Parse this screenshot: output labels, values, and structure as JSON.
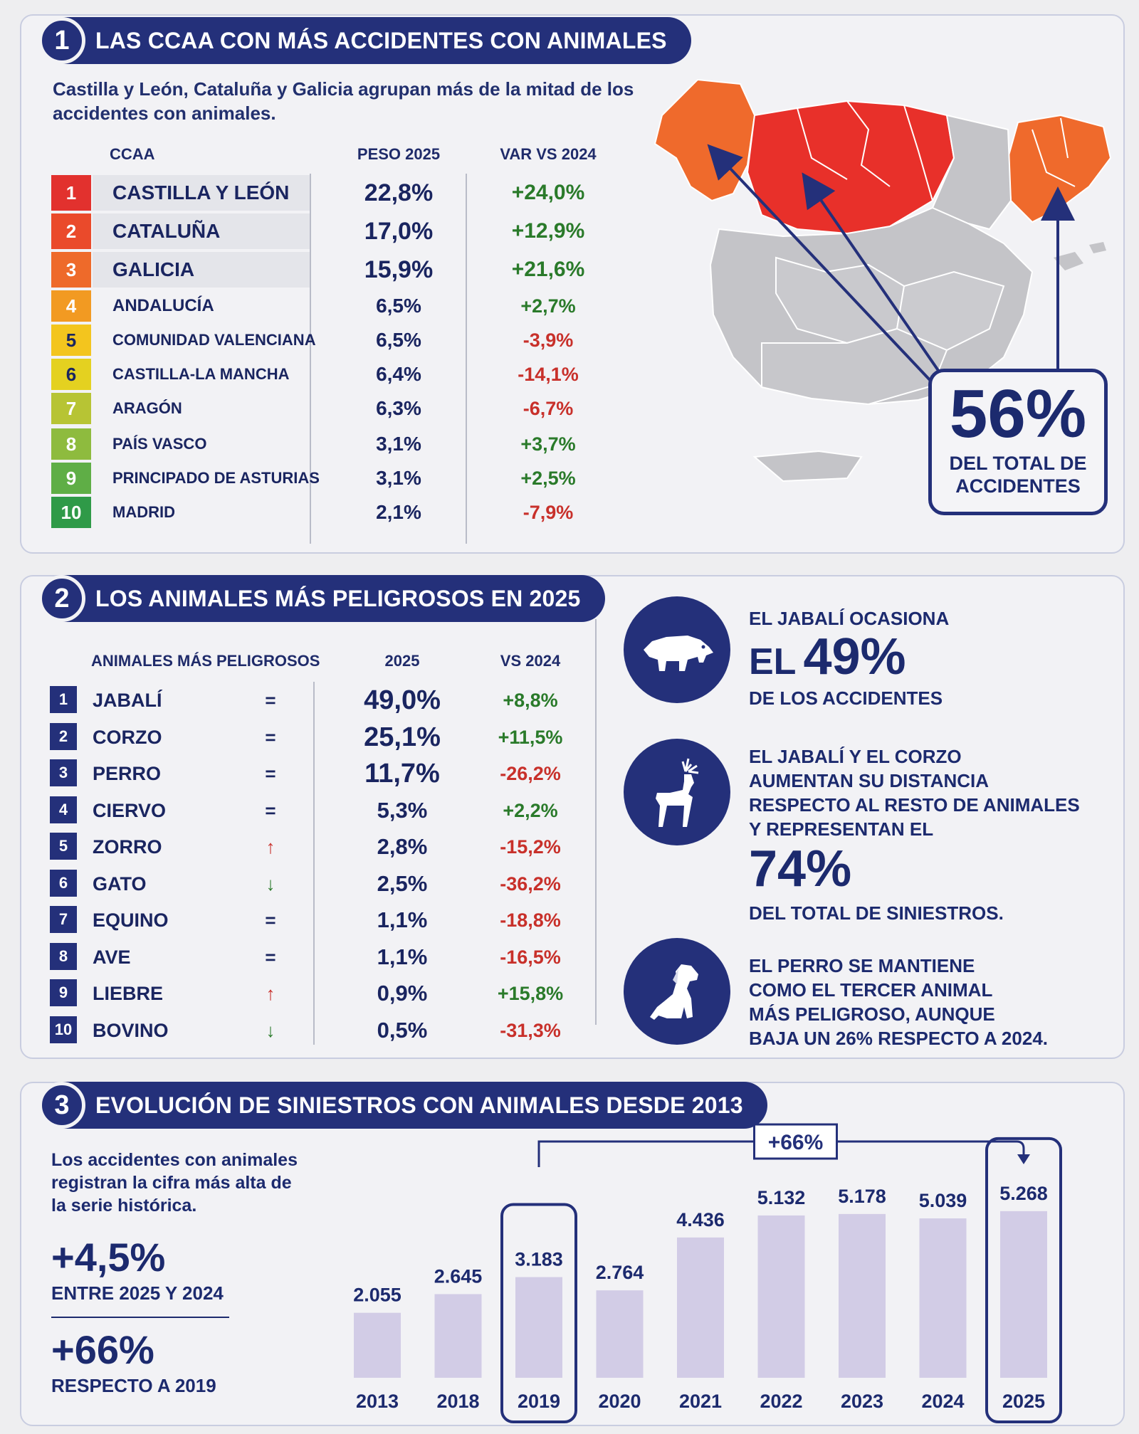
{
  "section1": {
    "number": "1",
    "title": "LAS CCAA CON MÁS ACCIDENTES CON ANIMALES",
    "subtitle": "Castilla y León, Cataluña y Galicia agrupan más de la mitad de los accidentes con animales.",
    "headers": {
      "ccaa": "CCAA",
      "peso": "PESO 2025",
      "var": "VAR VS 2024"
    },
    "rows": [
      {
        "rank": "1",
        "name": "CASTILLA Y LEÓN",
        "peso": "22,8%",
        "var": "+24,0%",
        "color": "#e2312e"
      },
      {
        "rank": "2",
        "name": "CATALUÑA",
        "peso": "17,0%",
        "var": "+12,9%",
        "color": "#ea4a2b"
      },
      {
        "rank": "3",
        "name": "GALICIA",
        "peso": "15,9%",
        "var": "+21,6%",
        "color": "#ee6a2a"
      },
      {
        "rank": "4",
        "name": "ANDALUCÍA",
        "peso": "6,5%",
        "var": "+2,7%",
        "color": "#f29a22"
      },
      {
        "rank": "5",
        "name": "COMUNIDAD VALENCIANA",
        "peso": "6,5%",
        "var": "-3,9%",
        "color": "#f3c51e"
      },
      {
        "rank": "6",
        "name": "CASTILLA-LA MANCHA",
        "peso": "6,4%",
        "var": "-14,1%",
        "color": "#e4d120"
      },
      {
        "rank": "7",
        "name": "ARAGÓN",
        "peso": "6,3%",
        "var": "-6,7%",
        "color": "#b7c434"
      },
      {
        "rank": "8",
        "name": "PAÍS VASCO",
        "peso": "3,1%",
        "var": "+3,7%",
        "color": "#8ebb3e"
      },
      {
        "rank": "9",
        "name": "PRINCIPADO DE ASTURIAS",
        "peso": "3,1%",
        "var": "+2,5%",
        "color": "#5fae46"
      },
      {
        "rank": "10",
        "name": "MADRID",
        "peso": "2,1%",
        "var": "-7,9%",
        "color": "#2f9a48"
      }
    ],
    "map_callout": {
      "pct": "56%",
      "label": "DEL TOTAL DE ACCIDENTES"
    },
    "map_colors": {
      "highlight_cyl": "#e8302a",
      "highlight_gal_cat": "#ef6a2c",
      "other": "#c4c4c8"
    }
  },
  "section2": {
    "number": "2",
    "title": "LOS ANIMALES MÁS PELIGROSOS EN 2025",
    "headers": {
      "animal": "ANIMALES MÁS PELIGROSOS",
      "y2025": "2025",
      "vs": "VS 2024"
    },
    "rows": [
      {
        "rank": "1",
        "name": "JABALÍ",
        "trend": "=",
        "value": "49,0%",
        "var": "+8,8%"
      },
      {
        "rank": "2",
        "name": "CORZO",
        "trend": "=",
        "value": "25,1%",
        "var": "+11,5%"
      },
      {
        "rank": "3",
        "name": "PERRO",
        "trend": "=",
        "value": "11,7%",
        "var": "-26,2%"
      },
      {
        "rank": "4",
        "name": "CIERVO",
        "trend": "=",
        "value": "5,3%",
        "var": "+2,2%"
      },
      {
        "rank": "5",
        "name": "ZORRO",
        "trend": "↑",
        "value": "2,8%",
        "var": "-15,2%"
      },
      {
        "rank": "6",
        "name": "GATO",
        "trend": "↓",
        "value": "2,5%",
        "var": "-36,2%"
      },
      {
        "rank": "7",
        "name": "EQUINO",
        "trend": "=",
        "value": "1,1%",
        "var": "-18,8%"
      },
      {
        "rank": "8",
        "name": "AVE",
        "trend": "=",
        "value": "1,1%",
        "var": "-16,5%"
      },
      {
        "rank": "9",
        "name": "LIEBRE",
        "trend": "↑",
        "value": "0,9%",
        "var": "+15,8%"
      },
      {
        "rank": "10",
        "name": "BOVINO",
        "trend": "↓",
        "value": "0,5%",
        "var": "-31,3%"
      }
    ],
    "info": {
      "boar": {
        "icon": "boar-icon",
        "top": "EL JABALÍ OCASIONA",
        "big_prefix": "EL",
        "big": "49%",
        "bottom": "DE LOS ACCIDENTES"
      },
      "deer": {
        "icon": "deer-icon",
        "lines": [
          "EL JABALÍ Y EL CORZO",
          "AUMENTAN SU DISTANCIA",
          "RESPECTO AL RESTO DE ANIMALES",
          "Y REPRESENTAN EL"
        ],
        "big": "74%",
        "bottom": "DEL TOTAL DE SINIESTROS."
      },
      "dog": {
        "icon": "dog-icon",
        "lines": [
          "EL PERRO SE MANTIENE",
          "COMO EL TERCER ANIMAL",
          "MÁS PELIGROSO, AUNQUE",
          "BAJA UN 26% RESPECTO A 2024."
        ]
      }
    }
  },
  "section3": {
    "number": "3",
    "title": "EVOLUCIÓN DE SINIESTROS CON ANIMALES DESDE 2013",
    "subtitle": "Los accidentes con animales registran la cifra más alta de la serie histórica.",
    "kpi1": {
      "value": "+4,5%",
      "label": "ENTRE 2025 Y 2024"
    },
    "kpi2": {
      "value": "+66%",
      "label": "RESPECTO A 2019"
    },
    "bracket_label": "+66%"
  },
  "chart_data": {
    "type": "bar",
    "title": "",
    "xlabel": "",
    "ylabel": "",
    "categories": [
      "2013",
      "2018",
      "2019",
      "2020",
      "2021",
      "2022",
      "2023",
      "2024",
      "2025"
    ],
    "values": [
      2055,
      2645,
      3183,
      2764,
      4436,
      5132,
      5178,
      5039,
      5268
    ],
    "value_labels": [
      "2.055",
      "2.645",
      "3.183",
      "2.764",
      "4.436",
      "5.132",
      "5.178",
      "5.039",
      "5.268"
    ],
    "highlighted": [
      "2019",
      "2025"
    ],
    "ylim": [
      0,
      5400
    ],
    "bar_color": "#d2cce6",
    "grid": false,
    "legend": "none",
    "annotation": "+66%"
  }
}
